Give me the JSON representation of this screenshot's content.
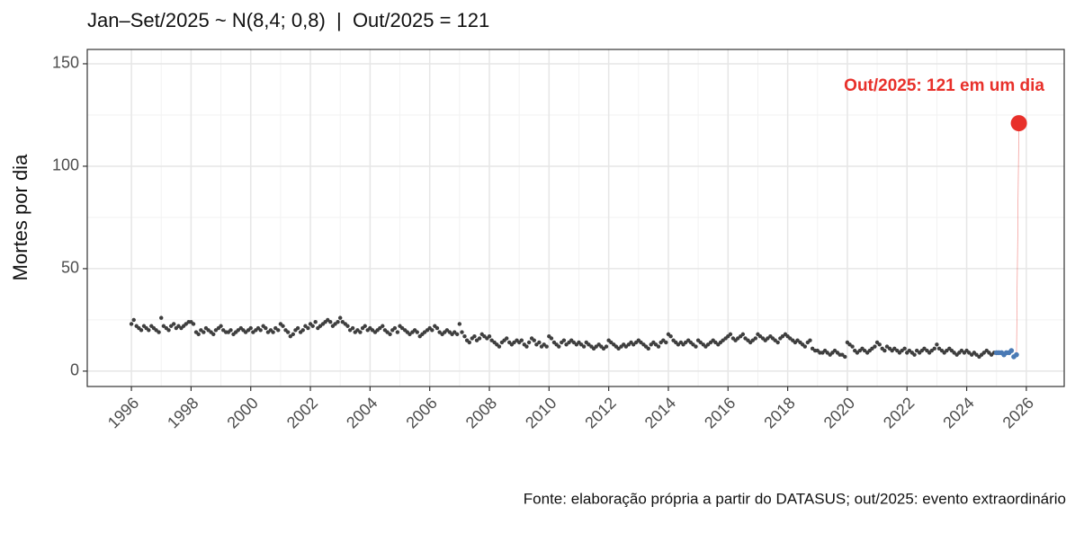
{
  "chart_data": {
    "type": "scatter",
    "title": "Jan–Set/2025 ~ N(8,4; 0,8)  |  Out/2025 = 121",
    "y_label": "Mortes por dia",
    "caption": "Fonte: elaboração própria a partir do DATASUS; out/2025: evento extraordinário",
    "annotation": "Out/2025: 121 em um dia",
    "xlim": [
      1994.52,
      2027.27
    ],
    "ylim": [
      -7.5,
      157
    ],
    "xticks": [
      1996,
      1998,
      2000,
      2002,
      2004,
      2006,
      2008,
      2010,
      2012,
      2014,
      2016,
      2018,
      2020,
      2022,
      2024,
      2026
    ],
    "yticks": [
      0,
      50,
      100,
      150
    ],
    "grid": true,
    "series": [
      {
        "color": "#3f3f3f",
        "size": 2.2,
        "x": [
          1996,
          1996.08,
          1996.17,
          1996.25,
          1996.33,
          1996.42,
          1996.5,
          1996.58,
          1996.67,
          1996.75,
          1996.83,
          1996.92,
          1997,
          1997.08,
          1997.17,
          1997.25,
          1997.33,
          1997.42,
          1997.5,
          1997.58,
          1997.67,
          1997.75,
          1997.83,
          1997.92,
          1998,
          1998.08,
          1998.17,
          1998.25,
          1998.33,
          1998.42,
          1998.5,
          1998.58,
          1998.67,
          1998.75,
          1998.83,
          1998.92,
          1999,
          1999.08,
          1999.17,
          1999.25,
          1999.33,
          1999.42,
          1999.5,
          1999.58,
          1999.67,
          1999.75,
          1999.83,
          1999.92,
          2000,
          2000.08,
          2000.17,
          2000.25,
          2000.33,
          2000.42,
          2000.5,
          2000.58,
          2000.67,
          2000.75,
          2000.83,
          2000.92,
          2001,
          2001.08,
          2001.17,
          2001.25,
          2001.33,
          2001.42,
          2001.5,
          2001.58,
          2001.67,
          2001.75,
          2001.83,
          2001.92,
          2002,
          2002.08,
          2002.17,
          2002.25,
          2002.33,
          2002.42,
          2002.5,
          2002.58,
          2002.67,
          2002.75,
          2002.83,
          2002.92,
          2003,
          2003.08,
          2003.17,
          2003.25,
          2003.33,
          2003.42,
          2003.5,
          2003.58,
          2003.67,
          2003.75,
          2003.83,
          2003.92,
          2004,
          2004.08,
          2004.17,
          2004.25,
          2004.33,
          2004.42,
          2004.5,
          2004.58,
          2004.67,
          2004.75,
          2004.83,
          2004.92,
          2005,
          2005.08,
          2005.17,
          2005.25,
          2005.33,
          2005.42,
          2005.5,
          2005.58,
          2005.67,
          2005.75,
          2005.83,
          2005.92,
          2006,
          2006.08,
          2006.17,
          2006.25,
          2006.33,
          2006.42,
          2006.5,
          2006.58,
          2006.67,
          2006.75,
          2006.83,
          2006.92,
          2007,
          2007.08,
          2007.17,
          2007.25,
          2007.33,
          2007.42,
          2007.5,
          2007.58,
          2007.67,
          2007.75,
          2007.83,
          2007.92,
          2008,
          2008.08,
          2008.17,
          2008.25,
          2008.33,
          2008.42,
          2008.5,
          2008.58,
          2008.67,
          2008.75,
          2008.83,
          2008.92,
          2009,
          2009.08,
          2009.17,
          2009.25,
          2009.33,
          2009.42,
          2009.5,
          2009.58,
          2009.67,
          2009.75,
          2009.83,
          2009.92,
          2010,
          2010.08,
          2010.17,
          2010.25,
          2010.33,
          2010.42,
          2010.5,
          2010.58,
          2010.67,
          2010.75,
          2010.83,
          2010.92,
          2011,
          2011.08,
          2011.17,
          2011.25,
          2011.33,
          2011.42,
          2011.5,
          2011.58,
          2011.67,
          2011.75,
          2011.83,
          2011.92,
          2012,
          2012.08,
          2012.17,
          2012.25,
          2012.33,
          2012.42,
          2012.5,
          2012.58,
          2012.67,
          2012.75,
          2012.83,
          2012.92,
          2013,
          2013.08,
          2013.17,
          2013.25,
          2013.33,
          2013.42,
          2013.5,
          2013.58,
          2013.67,
          2013.75,
          2013.83,
          2013.92,
          2014,
          2014.08,
          2014.17,
          2014.25,
          2014.33,
          2014.42,
          2014.5,
          2014.58,
          2014.67,
          2014.75,
          2014.83,
          2014.92,
          2015,
          2015.08,
          2015.17,
          2015.25,
          2015.33,
          2015.42,
          2015.5,
          2015.58,
          2015.67,
          2015.75,
          2015.83,
          2015.92,
          2016,
          2016.08,
          2016.17,
          2016.25,
          2016.33,
          2016.42,
          2016.5,
          2016.58,
          2016.67,
          2016.75,
          2016.83,
          2016.92,
          2017,
          2017.08,
          2017.17,
          2017.25,
          2017.33,
          2017.42,
          2017.5,
          2017.58,
          2017.67,
          2017.75,
          2017.83,
          2017.92,
          2018,
          2018.08,
          2018.17,
          2018.25,
          2018.33,
          2018.42,
          2018.5,
          2018.58,
          2018.67,
          2018.75,
          2018.83,
          2018.92,
          2019,
          2019.08,
          2019.17,
          2019.25,
          2019.33,
          2019.42,
          2019.5,
          2019.58,
          2019.67,
          2019.75,
          2019.83,
          2019.92,
          2020,
          2020.08,
          2020.17,
          2020.25,
          2020.33,
          2020.42,
          2020.5,
          2020.58,
          2020.67,
          2020.75,
          2020.83,
          2020.92,
          2021,
          2021.08,
          2021.17,
          2021.25,
          2021.33,
          2021.42,
          2021.5,
          2021.58,
          2021.67,
          2021.75,
          2021.83,
          2021.92,
          2022,
          2022.08,
          2022.17,
          2022.25,
          2022.33,
          2022.42,
          2022.5,
          2022.58,
          2022.67,
          2022.75,
          2022.83,
          2022.92,
          2023,
          2023.08,
          2023.17,
          2023.25,
          2023.33,
          2023.42,
          2023.5,
          2023.58,
          2023.67,
          2023.75,
          2023.83,
          2023.92,
          2024,
          2024.08,
          2024.17,
          2024.25,
          2024.33,
          2024.42,
          2024.5,
          2024.58,
          2024.67,
          2024.75,
          2024.83,
          2024.92
        ],
        "values": [
          23,
          25,
          22,
          21,
          20,
          22,
          21,
          20,
          22,
          21,
          20,
          19,
          26,
          22,
          21,
          20,
          22,
          23,
          21,
          22,
          21,
          22,
          23,
          24,
          24,
          23,
          19,
          18,
          20,
          19,
          21,
          20,
          19,
          18,
          20,
          21,
          22,
          20,
          19,
          19,
          20,
          18,
          19,
          20,
          21,
          20,
          19,
          20,
          21,
          19,
          20,
          21,
          20,
          22,
          21,
          19,
          20,
          19,
          21,
          20,
          23,
          22,
          20,
          19,
          17,
          18,
          20,
          21,
          19,
          20,
          22,
          21,
          23,
          22,
          24,
          21,
          22,
          23,
          24,
          25,
          24,
          22,
          23,
          24,
          26,
          24,
          23,
          22,
          20,
          21,
          19,
          20,
          19,
          21,
          22,
          20,
          21,
          20,
          19,
          20,
          21,
          22,
          20,
          19,
          18,
          20,
          21,
          19,
          22,
          21,
          20,
          19,
          18,
          19,
          20,
          19,
          17,
          18,
          19,
          20,
          21,
          20,
          22,
          21,
          19,
          18,
          19,
          20,
          19,
          18,
          19,
          18,
          23,
          19,
          17,
          15,
          14,
          16,
          17,
          15,
          16,
          18,
          17,
          16,
          17,
          15,
          14,
          13,
          12,
          14,
          15,
          16,
          14,
          13,
          14,
          15,
          14,
          15,
          13,
          12,
          14,
          16,
          15,
          13,
          14,
          12,
          13,
          12,
          17,
          16,
          14,
          13,
          12,
          14,
          15,
          13,
          14,
          15,
          14,
          13,
          14,
          13,
          12,
          14,
          13,
          12,
          11,
          12,
          13,
          12,
          11,
          12,
          15,
          14,
          13,
          12,
          11,
          12,
          13,
          12,
          13,
          14,
          13,
          14,
          15,
          14,
          13,
          12,
          11,
          13,
          14,
          13,
          12,
          14,
          15,
          14,
          18,
          17,
          15,
          14,
          13,
          14,
          13,
          14,
          15,
          14,
          13,
          12,
          15,
          14,
          13,
          12,
          13,
          14,
          15,
          14,
          13,
          14,
          15,
          16,
          17,
          18,
          16,
          15,
          16,
          17,
          18,
          16,
          15,
          14,
          15,
          16,
          18,
          17,
          16,
          15,
          16,
          17,
          16,
          15,
          14,
          16,
          17,
          18,
          17,
          16,
          15,
          14,
          15,
          14,
          13,
          12,
          14,
          15,
          11,
          10,
          10,
          9,
          9,
          10,
          9,
          8,
          9,
          10,
          9,
          8,
          8,
          7,
          14,
          13,
          12,
          10,
          9,
          10,
          11,
          10,
          9,
          10,
          11,
          12,
          14,
          13,
          11,
          10,
          12,
          11,
          10,
          11,
          10,
          9,
          10,
          11,
          9,
          10,
          9,
          8,
          10,
          9,
          10,
          11,
          10,
          9,
          10,
          11,
          13,
          11,
          10,
          9,
          10,
          11,
          10,
          9,
          8,
          9,
          10,
          9,
          10,
          9,
          8,
          9,
          8,
          7,
          8,
          9,
          10,
          9,
          8,
          9
        ]
      },
      {
        "color": "#4a7ab5",
        "size": 2.8,
        "x": [
          2025,
          2025.08,
          2025.17,
          2025.25,
          2025.33,
          2025.42,
          2025.5,
          2025.58,
          2025.67
        ],
        "values": [
          9,
          9,
          9,
          8,
          9,
          9,
          10,
          7,
          8
        ]
      },
      {
        "color": "#e8302a",
        "size": 9,
        "x": [
          2025.75
        ],
        "values": [
          121
        ]
      }
    ]
  }
}
